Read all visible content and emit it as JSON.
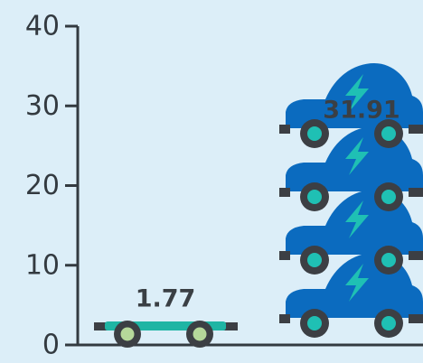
{
  "chart_data": {
    "type": "bar",
    "categories": [
      "",
      ""
    ],
    "values": [
      1.77,
      31.91
    ],
    "data_labels": [
      "1.77",
      "31.91"
    ],
    "title": "",
    "xlabel": "",
    "ylabel": "",
    "ylim": [
      0,
      40
    ],
    "y_ticks": [
      0,
      10,
      20,
      30,
      40
    ],
    "grid": false,
    "legend": "none",
    "colors": {
      "background": "#dceef8",
      "axis": "#333a40",
      "car_body": "#0b6bbf",
      "bolt": "#1fc0b4",
      "wheel": "#3c3f44",
      "hub_teal": "#1fc0b4",
      "skateboard_deck": "#1fb5a4",
      "skateboard_wheel": "#b5d89a"
    },
    "icons": [
      "skateboard-icon",
      "electric-car-icon"
    ]
  }
}
